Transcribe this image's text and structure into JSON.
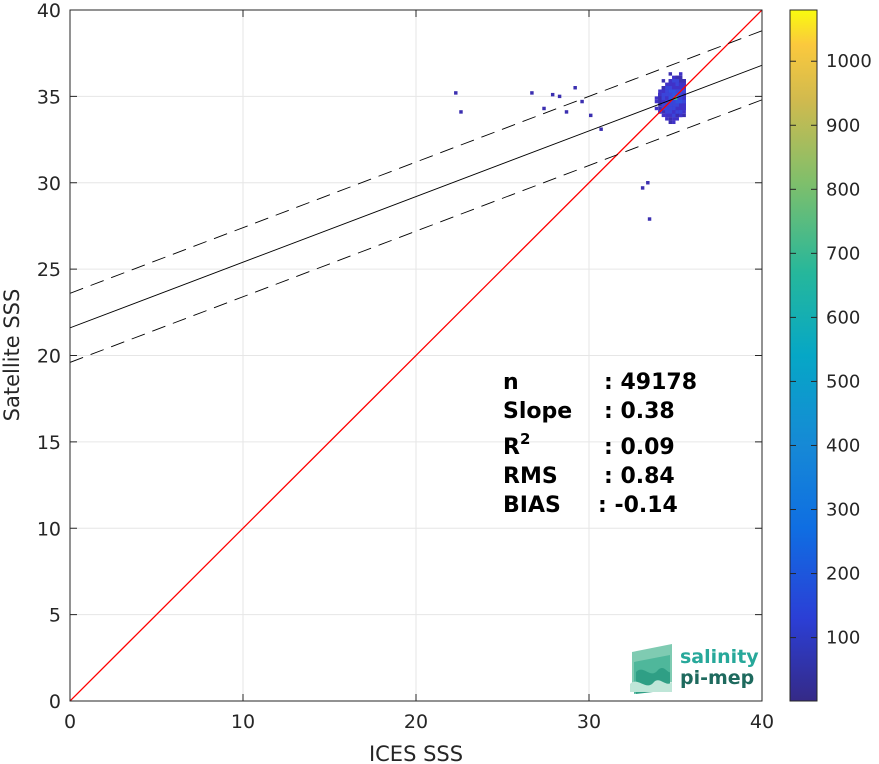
{
  "chart_data": {
    "type": "heatmap",
    "subtype": "2D density scatter with regression lines",
    "xlabel": "ICES SSS",
    "ylabel": "Satellite SSS",
    "xlim": [
      0,
      40
    ],
    "ylim": [
      0,
      40
    ],
    "xticks": [
      0,
      10,
      20,
      30,
      40
    ],
    "yticks": [
      0,
      5,
      10,
      15,
      20,
      25,
      30,
      35,
      40
    ],
    "grid": true,
    "colormap": "parula",
    "colorbar": {
      "range": [
        1,
        1080
      ],
      "ticks": [
        100,
        200,
        300,
        400,
        500,
        600,
        700,
        800,
        900,
        1000
      ]
    },
    "one_to_one_line": {
      "from": [
        0,
        0
      ],
      "to": [
        40,
        40
      ],
      "color": "#ff0000"
    },
    "regression_line": {
      "slope": 0.38,
      "intercept": 21.6,
      "color": "#000000",
      "style": "solid"
    },
    "confidence_lines": [
      {
        "slope": 0.38,
        "intercept": 23.6,
        "style": "dashed"
      },
      {
        "slope": 0.38,
        "intercept": 19.6,
        "style": "dashed"
      }
    ],
    "density_cluster": {
      "x_range": [
        30.5,
        35.5
      ],
      "y_range": [
        29.5,
        38.1
      ],
      "peak": [
        34.9,
        34.8
      ]
    },
    "outliers": [
      [
        22.2,
        35.1
      ],
      [
        22.5,
        34.0
      ],
      [
        26.6,
        35.1
      ],
      [
        27.3,
        34.2
      ],
      [
        27.8,
        35.0
      ],
      [
        28.2,
        34.9
      ],
      [
        28.6,
        34.0
      ],
      [
        29.1,
        35.4
      ],
      [
        29.5,
        34.6
      ],
      [
        30.0,
        33.8
      ],
      [
        30.6,
        33.0
      ],
      [
        33.4,
        27.8
      ],
      [
        33.0,
        29.6
      ],
      [
        33.3,
        29.9
      ]
    ],
    "stats": [
      {
        "label": "n",
        "value": ": 49178"
      },
      {
        "label": "Slope",
        "value": ": 0.38"
      },
      {
        "label": "R",
        "sup": "2",
        "value": ": 0.09"
      },
      {
        "label": "RMS",
        "value": ": 0.84"
      },
      {
        "label": "BIAS",
        "value": ": -0.14"
      }
    ]
  },
  "logo": {
    "line1": "salinity",
    "line2": "pi-mep"
  }
}
